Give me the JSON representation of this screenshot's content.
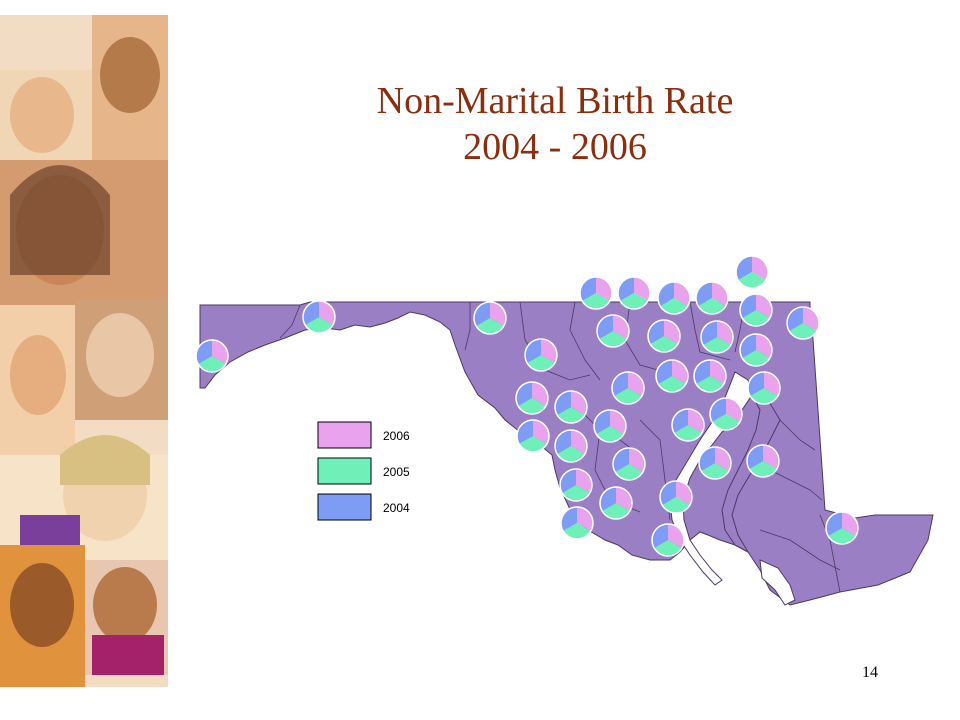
{
  "slide": {
    "title_line1": "Non-Marital Birth Rate",
    "title_line2": "2004 - 2006",
    "page_number": "14"
  },
  "colors": {
    "map_fill": "#9b7fc4",
    "map_stroke": "#4a3a66",
    "year_2006": "#e9a2ee",
    "year_2005": "#6ff0b8",
    "year_2004": "#7f9cf5",
    "title": "#8b2e0e"
  },
  "legend": {
    "items": [
      {
        "label": "2006",
        "color": "#e9a2ee"
      },
      {
        "label": "2005",
        "color": "#6ff0b8"
      },
      {
        "label": "2004",
        "color": "#7f9cf5"
      }
    ]
  },
  "photo_strip": {
    "icon": "children-photo-collage"
  }
}
